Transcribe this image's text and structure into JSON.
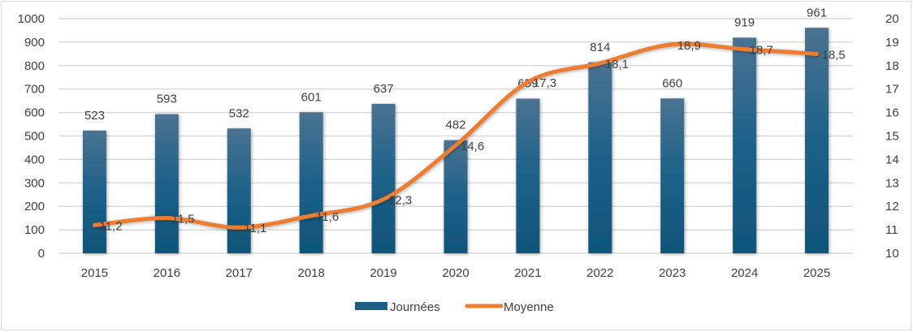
{
  "chart_data": {
    "type": "bar",
    "title": "",
    "xlabel": "",
    "ylabel": "",
    "y2label": "",
    "categories": [
      "2015",
      "2016",
      "2017",
      "2018",
      "2019",
      "2020",
      "2021",
      "2022",
      "2023",
      "2024",
      "2025"
    ],
    "series": [
      {
        "name": "Journées",
        "type": "bar",
        "axis": "left",
        "color": "#1f5f85",
        "values": [
          523,
          593,
          532,
          601,
          637,
          482,
          659,
          814,
          660,
          919,
          961
        ],
        "labels": [
          "523",
          "593",
          "532",
          "601",
          "637",
          "482",
          "659",
          "814",
          "660",
          "919",
          "961"
        ]
      },
      {
        "name": "Moyenne",
        "type": "line",
        "axis": "right",
        "color": "#ed7d31",
        "values": [
          11.2,
          11.5,
          11.1,
          11.6,
          12.3,
          14.6,
          17.3,
          18.1,
          18.9,
          18.7,
          18.5
        ],
        "labels": [
          "11,2",
          "11,5",
          "11,1",
          "11,6",
          "12,3",
          "14,6",
          "17,3",
          "18,1",
          "18,9",
          "18,7",
          "18,5"
        ]
      }
    ],
    "ylim": [
      0,
      1000
    ],
    "y2lim": [
      10,
      20
    ],
    "yticks": [
      "0",
      "100",
      "200",
      "300",
      "400",
      "500",
      "600",
      "700",
      "800",
      "900",
      "1000"
    ],
    "y2ticks": [
      "10",
      "11",
      "12",
      "13",
      "14",
      "15",
      "16",
      "17",
      "18",
      "19",
      "20"
    ],
    "grid": true,
    "legend": "bottom"
  }
}
